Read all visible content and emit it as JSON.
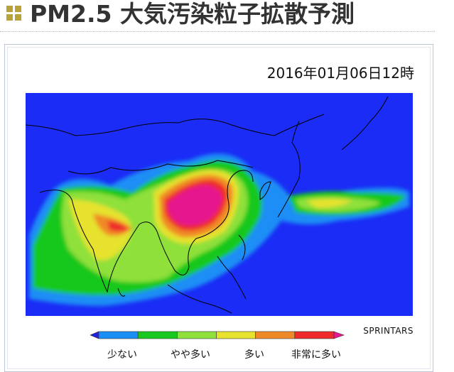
{
  "header": {
    "title": "PM2.5 大気汚染粒子拡散予測"
  },
  "map": {
    "timestamp": "2016年01月06日12時",
    "credit": "SPRINTARS"
  },
  "colorbar": {
    "colors": [
      "#2222dd",
      "#1a8ef5",
      "#19c81e",
      "#8fe03a",
      "#e6e22e",
      "#f08a28",
      "#ee2a2a",
      "#e6178e"
    ],
    "labels": [
      "少ない",
      "やや多い",
      "多い",
      "非常に多い"
    ]
  }
}
